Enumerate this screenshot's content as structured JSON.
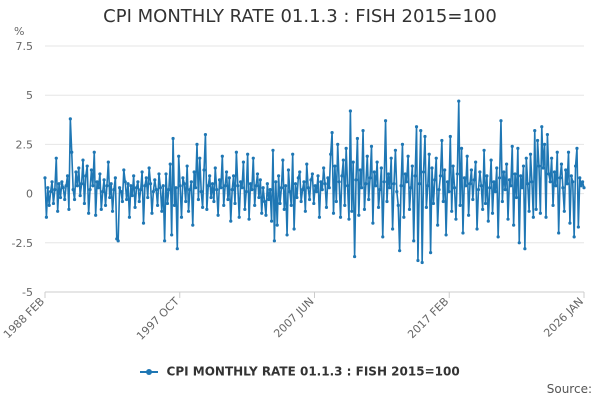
{
  "chart_data": {
    "type": "line",
    "title": "CPI MONTHLY RATE 01.1.3 : FISH 2015=100",
    "ylabel": "%",
    "xlabel": "",
    "ylim": [
      -5,
      7.5
    ],
    "yticks": [
      -5,
      -2.5,
      0,
      2.5,
      5,
      7.5
    ],
    "ytick_labels": [
      "-5",
      "-2.5",
      "0",
      "2.5",
      "5",
      "7.5"
    ],
    "xtick_labels": [
      "1988 FEB",
      "1997 OCT",
      "2007 JUN",
      "2017 FEB",
      "2026 JAN"
    ],
    "grid": true,
    "legend": "bottom",
    "color": "#1f77b4",
    "series": [
      {
        "name": "CPI MONTHLY RATE 01.1.3 : FISH 2015=100",
        "x_start": "1988-02",
        "values": [
          0.8,
          -1.2,
          0.3,
          -0.6,
          0.1,
          0.6,
          -0.5,
          0.2,
          1.8,
          -0.9,
          0.5,
          -0.2,
          0.6,
          0.3,
          -0.3,
          0.4,
          0.9,
          -0.8,
          3.8,
          2.1,
          0.2,
          -0.3,
          1.1,
          0.4,
          1.3,
          -0.1,
          0.5,
          1.7,
          -0.5,
          0.9,
          1.4,
          -1.0,
          0.2,
          1.2,
          0.4,
          2.1,
          -1.1,
          0.6,
          0.3,
          1.0,
          -0.8,
          0.1,
          0.7,
          -0.6,
          0.4,
          1.6,
          -0.2,
          0.5,
          -0.9,
          0.2,
          0.8,
          -2.3,
          -2.4,
          0.3,
          0.1,
          -0.4,
          1.2,
          0.6,
          -0.3,
          0.5,
          -1.2,
          0.4,
          -0.1,
          0.9,
          -0.7,
          0.3,
          0.6,
          -0.4,
          0.2,
          1.1,
          -1.5,
          0.4,
          0.8,
          -0.2,
          1.3,
          0.5,
          -1.0,
          0.1,
          0.7,
          0.2,
          -0.6,
          1.0,
          0.3,
          -0.9,
          0.4,
          -2.4,
          1.0,
          -0.5,
          0.2,
          1.5,
          -2.1,
          2.8,
          -0.6,
          0.3,
          -2.8,
          1.9,
          0.4,
          -1.2,
          0.8,
          0.5,
          -0.4,
          1.4,
          -0.9,
          0.2,
          0.6,
          -1.6,
          1.1,
          0.3,
          2.5,
          -0.3,
          1.8,
          0.1,
          -0.7,
          1.2,
          3.0,
          -0.8,
          0.4,
          0.9,
          -0.2,
          0.5,
          -0.4,
          1.3,
          0.2,
          -1.1,
          0.7,
          0.3,
          1.9,
          -0.6,
          0.4,
          1.1,
          -0.3,
          0.8,
          -1.4,
          0.2,
          0.9,
          -0.5,
          2.1,
          0.4,
          -1.2,
          0.6,
          0.3,
          1.6,
          -0.8,
          0.1,
          2.0,
          -1.3,
          0.5,
          0.2,
          1.8,
          -0.6,
          0.4,
          1.0,
          -0.2,
          0.7,
          -1.0,
          0.3,
          -0.4,
          -1.1,
          0.5,
          -0.3,
          0.2,
          -1.4,
          2.2,
          -2.4,
          0.6,
          -1.6,
          0.9,
          -0.5,
          0.3,
          1.7,
          -0.8,
          0.4,
          -2.1,
          1.2,
          0.1,
          -0.6,
          2.0,
          -1.8,
          0.5,
          -0.2,
          0.8,
          1.1,
          -0.4,
          0.2,
          0.6,
          -0.9,
          1.5,
          0.3,
          -0.3,
          0.7,
          1.0,
          -0.5,
          0.4,
          0.1,
          0.9,
          -1.2,
          0.6,
          0.2,
          1.3,
          0.5,
          -0.7,
          0.8,
          0.3,
          2.0,
          3.1,
          -1.0,
          1.4,
          -0.4,
          2.5,
          0.6,
          -1.2,
          0.9,
          1.7,
          -0.6,
          2.3,
          0.4,
          -1.3,
          4.2,
          -0.9,
          1.6,
          -3.2,
          0.7,
          2.8,
          -1.1,
          1.2,
          0.3,
          3.2,
          -0.8,
          0.5,
          1.9,
          -0.3,
          0.8,
          2.4,
          -1.5,
          1.1,
          0.4,
          1.6,
          -0.7,
          0.2,
          1.3,
          -2.2,
          0.6,
          3.7,
          -0.4,
          1.0,
          0.3,
          1.8,
          -1.8,
          0.5,
          2.2,
          0.1,
          -0.6,
          -2.9,
          0.4,
          2.5,
          -1.2,
          1.0,
          0.6,
          1.9,
          -0.8,
          0.3,
          1.4,
          -2.4,
          0.9,
          3.4,
          -3.4,
          0.5,
          3.2,
          -3.5,
          1.1,
          2.9,
          -0.7,
          0.4,
          2.0,
          -3.0,
          1.3,
          -0.5,
          0.7,
          1.8,
          -1.6,
          0.2,
          0.9,
          2.7,
          -0.4,
          1.2,
          -2.1,
          0.6,
          0.1,
          2.9,
          -0.9,
          1.4,
          0.3,
          -1.3,
          1.0,
          4.7,
          -0.6,
          2.3,
          -2.0,
          0.8,
          0.4,
          1.9,
          -1.1,
          0.5,
          1.2,
          -0.3,
          0.7,
          1.6,
          -1.8,
          0.2,
          1.1,
          0.4,
          -0.8,
          2.2,
          -0.5,
          0.9,
          -1.4,
          0.3,
          1.7,
          -1.0,
          0.6,
          0.1,
          1.3,
          -2.2,
          0.8,
          3.7,
          -0.4,
          1.1,
          0.2,
          1.5,
          -1.3,
          0.7,
          0.4,
          2.4,
          -1.6,
          1.0,
          -0.2,
          2.3,
          -2.5,
          0.9,
          0.3,
          1.4,
          -2.8,
          1.8,
          0.5,
          -0.9,
          2.0,
          0.6,
          -1.2,
          3.2,
          -0.8,
          2.7,
          1.4,
          -1.0,
          3.4,
          1.3,
          2.5,
          -1.2,
          3.0,
          1.0,
          0.6,
          1.8,
          -0.6,
          1.1,
          0.4,
          2.1,
          -2.0,
          0.8,
          1.5,
          0.3,
          -0.9,
          1.2,
          0.5,
          2.1,
          -1.5,
          0.9,
          0.6,
          -2.2,
          1.4,
          2.3,
          -1.7,
          0.8,
          0.4,
          0.6,
          0.3
        ]
      }
    ]
  },
  "legend_label": "CPI MONTHLY RATE 01.1.3 : FISH 2015=100",
  "source_label": "Source:"
}
